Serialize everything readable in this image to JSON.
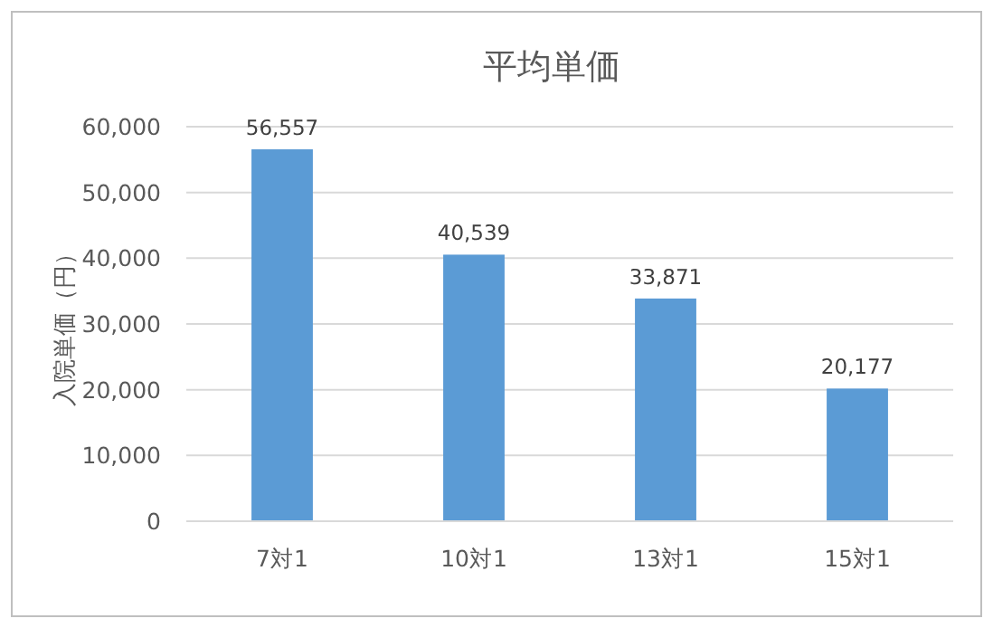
{
  "chart_data": {
    "type": "bar",
    "title": "平均単価",
    "ylabel": "入院単価（円）",
    "categories": [
      "7対1",
      "10対1",
      "13対1",
      "15対1"
    ],
    "values": [
      56557,
      40539,
      33871,
      20177
    ],
    "color": "#5b9bd5",
    "ylim": [
      0,
      60000
    ],
    "yticks": [
      0,
      {
        "value": 10000,
        "label": "10,000"
      },
      {
        "value": 20000,
        "label": "20,000"
      },
      {
        "value": 30000,
        "label": "30,000"
      },
      {
        "value": 40000,
        "label": "40,000"
      },
      {
        "value": 50000,
        "label": "50,000"
      },
      {
        "value": 60000,
        "label": "60,000"
      }
    ],
    "value_labels": [
      "56,557",
      "40,539",
      "33,871",
      "20,177"
    ],
    "grid": "y"
  }
}
